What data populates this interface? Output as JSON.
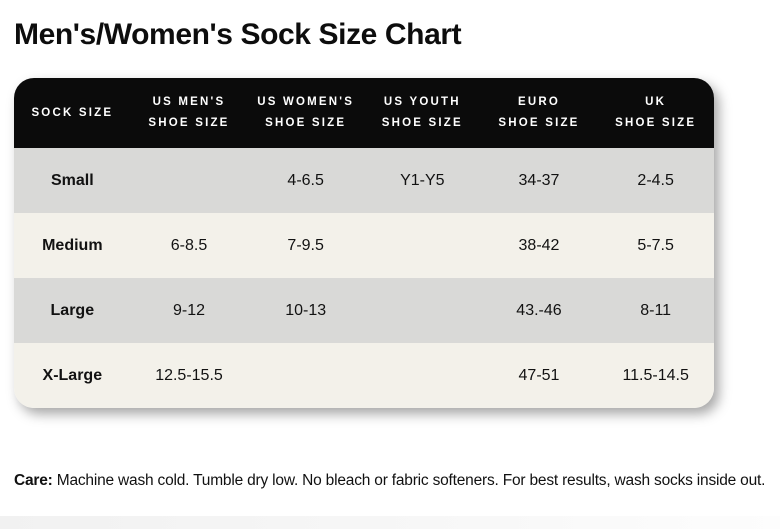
{
  "page": {
    "title": "Men's/Women's Sock Size Chart"
  },
  "table": {
    "headers": [
      {
        "line1": "SOCK SIZE",
        "line2": ""
      },
      {
        "line1": "US MEN'S",
        "line2": "SHOE SIZE"
      },
      {
        "line1": "US WOMEN'S",
        "line2": "SHOE SIZE"
      },
      {
        "line1": "US YOUTH",
        "line2": "SHOE SIZE"
      },
      {
        "line1": "EURO",
        "line2": "SHOE SIZE"
      },
      {
        "line1": "UK",
        "line2": "SHOE SIZE"
      }
    ]
  },
  "chart_data": {
    "type": "table",
    "title": "Men's/Women's Sock Size Chart",
    "columns": [
      "SOCK SIZE",
      "US MEN'S SHOE SIZE",
      "US WOMEN'S SHOE SIZE",
      "US YOUTH SHOE SIZE",
      "EURO SHOE SIZE",
      "UK SHOE SIZE"
    ],
    "rows": [
      [
        "Small",
        "",
        "4-6.5",
        "Y1-Y5",
        "34-37",
        "2-4.5"
      ],
      [
        "Medium",
        "6-8.5",
        "7-9.5",
        "",
        "38-42",
        "5-7.5"
      ],
      [
        "Large",
        "9-12",
        "10-13",
        "",
        "43.-46",
        "8-11"
      ],
      [
        "X-Large",
        "12.5-15.5",
        "",
        "",
        "47-51",
        "11.5-14.5"
      ]
    ]
  },
  "care": {
    "label": "Care:",
    "text": " Machine wash cold. Tumble dry low. No bleach or fabric softeners. For best results, wash socks inside out."
  },
  "colors": {
    "header_bg": "#0b0b0b",
    "header_text": "#ffffff",
    "row_gray": "#d9d9d7",
    "row_cream": "#f3f1ea",
    "text": "#111111"
  }
}
